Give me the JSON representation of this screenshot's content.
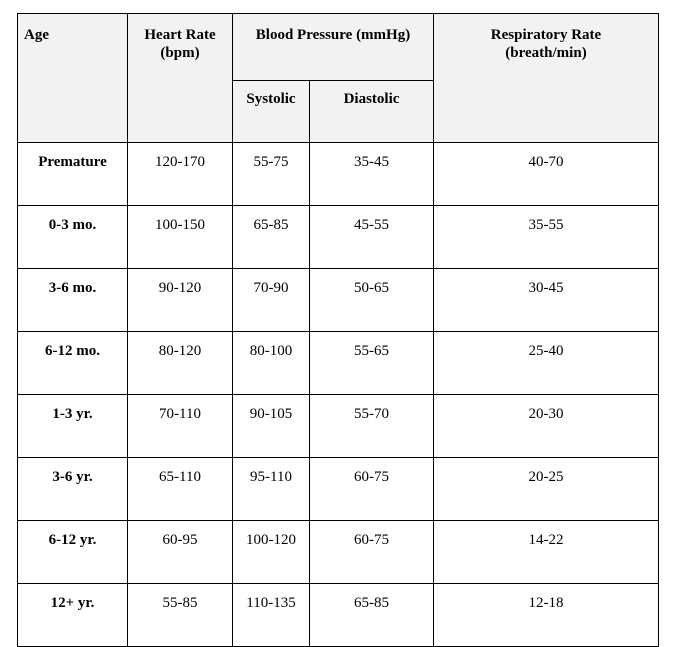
{
  "headers": {
    "age": "Age",
    "heart_rate_line1": "Heart Rate",
    "heart_rate_line2": "(bpm)",
    "blood_pressure": "Blood Pressure (mmHg)",
    "systolic": "Systolic",
    "diastolic": "Diastolic",
    "respiratory_line1": "Respiratory Rate",
    "respiratory_line2": "(breath/min)"
  },
  "rows": [
    {
      "age": "Premature",
      "heart_rate": "120-170",
      "systolic": "55-75",
      "diastolic": "35-45",
      "respiratory": "40-70"
    },
    {
      "age": "0-3 mo.",
      "heart_rate": "100-150",
      "systolic": "65-85",
      "diastolic": "45-55",
      "respiratory": "35-55"
    },
    {
      "age": "3-6 mo.",
      "heart_rate": "90-120",
      "systolic": "70-90",
      "diastolic": "50-65",
      "respiratory": "30-45"
    },
    {
      "age": "6-12 mo.",
      "heart_rate": "80-120",
      "systolic": "80-100",
      "diastolic": "55-65",
      "respiratory": "25-40"
    },
    {
      "age": "1-3 yr.",
      "heart_rate": "70-110",
      "systolic": "90-105",
      "diastolic": "55-70",
      "respiratory": "20-30"
    },
    {
      "age": "3-6 yr.",
      "heart_rate": "65-110",
      "systolic": "95-110",
      "diastolic": "60-75",
      "respiratory": "20-25"
    },
    {
      "age": "6-12 yr.",
      "heart_rate": "60-95",
      "systolic": "100-120",
      "diastolic": "60-75",
      "respiratory": "14-22"
    },
    {
      "age": "12+ yr.",
      "heart_rate": "55-85",
      "systolic": "110-135",
      "diastolic": "65-85",
      "respiratory": "12-18"
    }
  ],
  "colors": {
    "header_background": "#f2f2f2",
    "border": "#000000"
  }
}
